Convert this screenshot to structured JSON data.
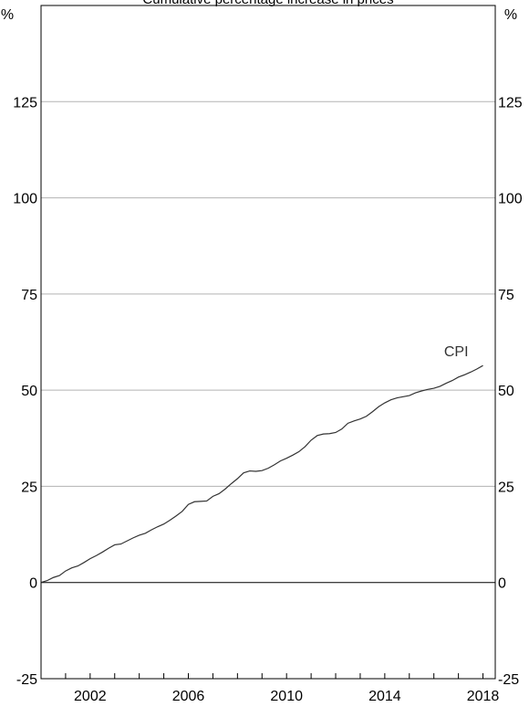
{
  "chart_data": {
    "type": "line",
    "title": "Cumulative percentage increase in prices",
    "unit_label_left": "%",
    "unit_label_right": "%",
    "ylim": [
      -25,
      150
    ],
    "y_ticks": [
      -25,
      0,
      25,
      50,
      75,
      100,
      125
    ],
    "y_tick_labels": [
      "-25",
      "0",
      "25",
      "50",
      "75",
      "100",
      "125"
    ],
    "xlim": [
      2000.0,
      2018.5
    ],
    "x_ticks": [
      2002,
      2006,
      2010,
      2014,
      2018
    ],
    "x_tick_labels": [
      "2002",
      "2006",
      "2010",
      "2014",
      "2018"
    ],
    "grid": true,
    "series": [
      {
        "name": "CPI",
        "color": "#333333",
        "points": [
          [
            2000.0,
            0.0
          ],
          [
            2000.25,
            0.5
          ],
          [
            2000.5,
            1.3
          ],
          [
            2000.75,
            1.8
          ],
          [
            2001.0,
            3.0
          ],
          [
            2001.25,
            3.8
          ],
          [
            2001.5,
            4.3
          ],
          [
            2001.75,
            5.2
          ],
          [
            2002.0,
            6.2
          ],
          [
            2002.25,
            7.0
          ],
          [
            2002.5,
            7.9
          ],
          [
            2002.75,
            8.9
          ],
          [
            2003.0,
            9.8
          ],
          [
            2003.25,
            10.0
          ],
          [
            2003.5,
            10.8
          ],
          [
            2003.75,
            11.6
          ],
          [
            2004.0,
            12.3
          ],
          [
            2004.25,
            12.8
          ],
          [
            2004.5,
            13.7
          ],
          [
            2004.75,
            14.5
          ],
          [
            2005.0,
            15.2
          ],
          [
            2005.25,
            16.2
          ],
          [
            2005.5,
            17.3
          ],
          [
            2005.75,
            18.5
          ],
          [
            2006.0,
            20.3
          ],
          [
            2006.25,
            21.0
          ],
          [
            2006.5,
            21.1
          ],
          [
            2006.75,
            21.2
          ],
          [
            2007.0,
            22.4
          ],
          [
            2007.25,
            23.1
          ],
          [
            2007.5,
            24.3
          ],
          [
            2007.75,
            25.7
          ],
          [
            2008.0,
            27.0
          ],
          [
            2008.25,
            28.5
          ],
          [
            2008.5,
            29.0
          ],
          [
            2008.75,
            28.9
          ],
          [
            2009.0,
            29.1
          ],
          [
            2009.25,
            29.7
          ],
          [
            2009.5,
            30.6
          ],
          [
            2009.75,
            31.6
          ],
          [
            2010.0,
            32.3
          ],
          [
            2010.25,
            33.1
          ],
          [
            2010.5,
            34.0
          ],
          [
            2010.75,
            35.3
          ],
          [
            2011.0,
            37.0
          ],
          [
            2011.25,
            38.2
          ],
          [
            2011.5,
            38.6
          ],
          [
            2011.75,
            38.7
          ],
          [
            2012.0,
            39.0
          ],
          [
            2012.25,
            39.9
          ],
          [
            2012.5,
            41.4
          ],
          [
            2012.75,
            42.0
          ],
          [
            2013.0,
            42.5
          ],
          [
            2013.25,
            43.2
          ],
          [
            2013.5,
            44.4
          ],
          [
            2013.75,
            45.7
          ],
          [
            2014.0,
            46.7
          ],
          [
            2014.25,
            47.5
          ],
          [
            2014.5,
            48.0
          ],
          [
            2014.75,
            48.3
          ],
          [
            2015.0,
            48.6
          ],
          [
            2015.25,
            49.3
          ],
          [
            2015.5,
            49.8
          ],
          [
            2015.75,
            50.2
          ],
          [
            2016.0,
            50.5
          ],
          [
            2016.25,
            51.0
          ],
          [
            2016.5,
            51.8
          ],
          [
            2016.75,
            52.5
          ],
          [
            2017.0,
            53.4
          ],
          [
            2017.25,
            54.0
          ],
          [
            2017.5,
            54.7
          ],
          [
            2017.75,
            55.5
          ],
          [
            2018.0,
            56.4
          ]
        ]
      }
    ]
  }
}
